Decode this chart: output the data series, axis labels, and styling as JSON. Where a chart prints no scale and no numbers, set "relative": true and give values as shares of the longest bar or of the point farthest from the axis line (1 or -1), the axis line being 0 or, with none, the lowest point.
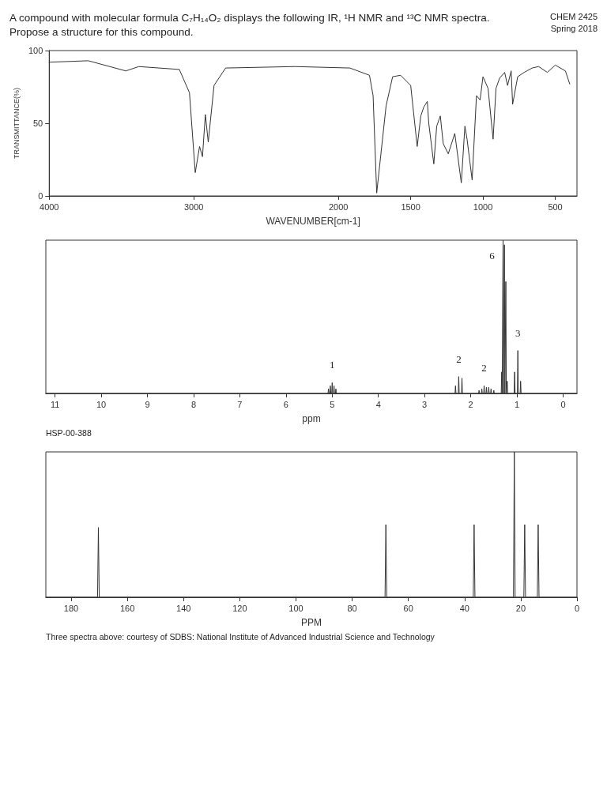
{
  "chart_data": [
    {
      "type": "line",
      "title": "A compound with molecular formula C₇H₁₄O₂ displays the following IR, ¹H NMR and ¹³C NMR spectra.",
      "subtitle": "Propose a structure for this compound.",
      "annotations": [
        "CHEM 2425",
        "Spring 2018"
      ],
      "xlabel": "WAVENUMBER[cm-1]",
      "ylabel": "TRANSMITTANCE(%)",
      "xlim": [
        4000,
        350
      ],
      "xticks": [
        4000,
        3000,
        2000,
        1500,
        1000,
        500
      ],
      "ylim": [
        0,
        100
      ],
      "yticks": [
        0,
        50,
        100
      ],
      "marker": "none",
      "line_style": "solid",
      "series": [
        {
          "color": "#333333",
          "x": [
            4000,
            3730,
            3470,
            3380,
            3100,
            3030,
            2990,
            2960,
            2940,
            2920,
            2900,
            2860,
            2780,
            2300,
            1920,
            1785,
            1760,
            1735,
            1670,
            1625,
            1570,
            1500,
            1455,
            1430,
            1410,
            1385,
            1375,
            1340,
            1320,
            1295,
            1275,
            1240,
            1195,
            1150,
            1125,
            1110,
            1075,
            1045,
            1020,
            1000,
            965,
            930,
            910,
            885,
            850,
            830,
            805,
            795,
            760,
            715,
            660,
            615,
            555,
            500,
            430,
            400
          ],
          "values": [
            92,
            93,
            86,
            89,
            87,
            71,
            16,
            34,
            27,
            56,
            37,
            76,
            88,
            89,
            88,
            83,
            69,
            2,
            62,
            82,
            83,
            76,
            34,
            55,
            61,
            65,
            50,
            22,
            48,
            55,
            36,
            29,
            43,
            9,
            48,
            39,
            11,
            69,
            66,
            82,
            74,
            39,
            74,
            81,
            85,
            76,
            86,
            63,
            82,
            85,
            88,
            89,
            85,
            90,
            86,
            77
          ]
        }
      ]
    },
    {
      "type": "line",
      "relative": true,
      "xlabel": "ppm",
      "xlim": [
        11.2,
        -0.3
      ],
      "xticks": [
        11,
        10,
        9,
        8,
        7,
        6,
        5,
        4,
        3,
        2,
        1,
        0
      ],
      "marker": "none",
      "line_style": "solid",
      "annotations": [
        "HSP-00-388",
        {
          "text": "1",
          "x": 5.0,
          "y": 0.07
        },
        {
          "text": "2",
          "x": 2.26,
          "y": 0.11
        },
        {
          "text": "2",
          "x": 1.71,
          "y": 0.05
        },
        {
          "text": "6",
          "x": 1.3,
          "y": 1
        },
        {
          "text": "3",
          "x": 0.98,
          "y": 0.28
        }
      ],
      "series": [
        {
          "color": "#333333",
          "x": [
            11.2,
            5.09,
            5.08,
            5.07,
            5.05,
            5.04,
            5.03,
            5.01,
            5.0,
            4.99,
            4.97,
            4.96,
            4.95,
            4.93,
            4.92,
            4.91,
            2.34,
            2.33,
            2.32,
            2.27,
            2.26,
            2.25,
            2.2,
            2.19,
            2.18,
            1.83,
            1.82,
            1.81,
            1.77,
            1.76,
            1.75,
            1.72,
            1.71,
            1.7,
            1.67,
            1.66,
            1.65,
            1.62,
            1.61,
            1.6,
            1.57,
            1.56,
            1.55,
            1.51,
            1.5,
            1.49,
            1.34,
            1.33,
            1.32,
            1.31,
            1.3,
            1.29,
            1.28,
            1.27,
            1.26,
            1.25,
            1.24,
            1.23,
            1.22,
            1.21,
            1.2,
            1.06,
            1.05,
            1.04,
            0.99,
            0.98,
            0.97,
            0.93,
            0.92,
            0.91,
            -0.3
          ],
          "values": [
            0,
            0,
            0.03,
            0,
            0,
            0.05,
            0,
            0,
            0.07,
            0,
            0,
            0.05,
            0,
            0,
            0.03,
            0,
            0,
            0.05,
            0,
            0,
            0.11,
            0,
            0,
            0.1,
            0,
            0,
            0.02,
            0,
            0,
            0.03,
            0,
            0,
            0.05,
            0,
            0,
            0.04,
            0,
            0,
            0.04,
            0,
            0,
            0.03,
            0,
            0,
            0.02,
            0,
            0,
            0.14,
            0,
            0,
            1,
            0,
            0,
            0.97,
            0,
            0,
            0.73,
            0,
            0,
            0.08,
            0,
            0,
            0.14,
            0,
            0,
            0.28,
            0,
            0,
            0.08,
            0,
            0
          ]
        }
      ]
    },
    {
      "type": "line",
      "relative": true,
      "xlabel": "PPM",
      "xlim": [
        189,
        0
      ],
      "xticks": [
        180,
        160,
        140,
        120,
        100,
        80,
        60,
        40,
        20,
        0
      ],
      "marker": "none",
      "line_style": "solid",
      "annotations": [
        "Three spectra above: courtesy of SDBS: National Institute of Advanced Industrial Science and Technology"
      ],
      "series": [
        {
          "color": "#333333",
          "x": [
            189,
            170.6,
            170.3,
            170.0,
            68.3,
            68.0,
            67.7,
            36.9,
            36.6,
            36.3,
            22.6,
            22.3,
            22.0,
            18.9,
            18.6,
            18.3,
            14.1,
            13.8,
            13.5,
            0
          ],
          "values": [
            0,
            0,
            0.48,
            0,
            0,
            0.5,
            0,
            0,
            0.5,
            0,
            0,
            1,
            0,
            0,
            0.5,
            0,
            0,
            0.5,
            0,
            0
          ]
        }
      ]
    }
  ]
}
